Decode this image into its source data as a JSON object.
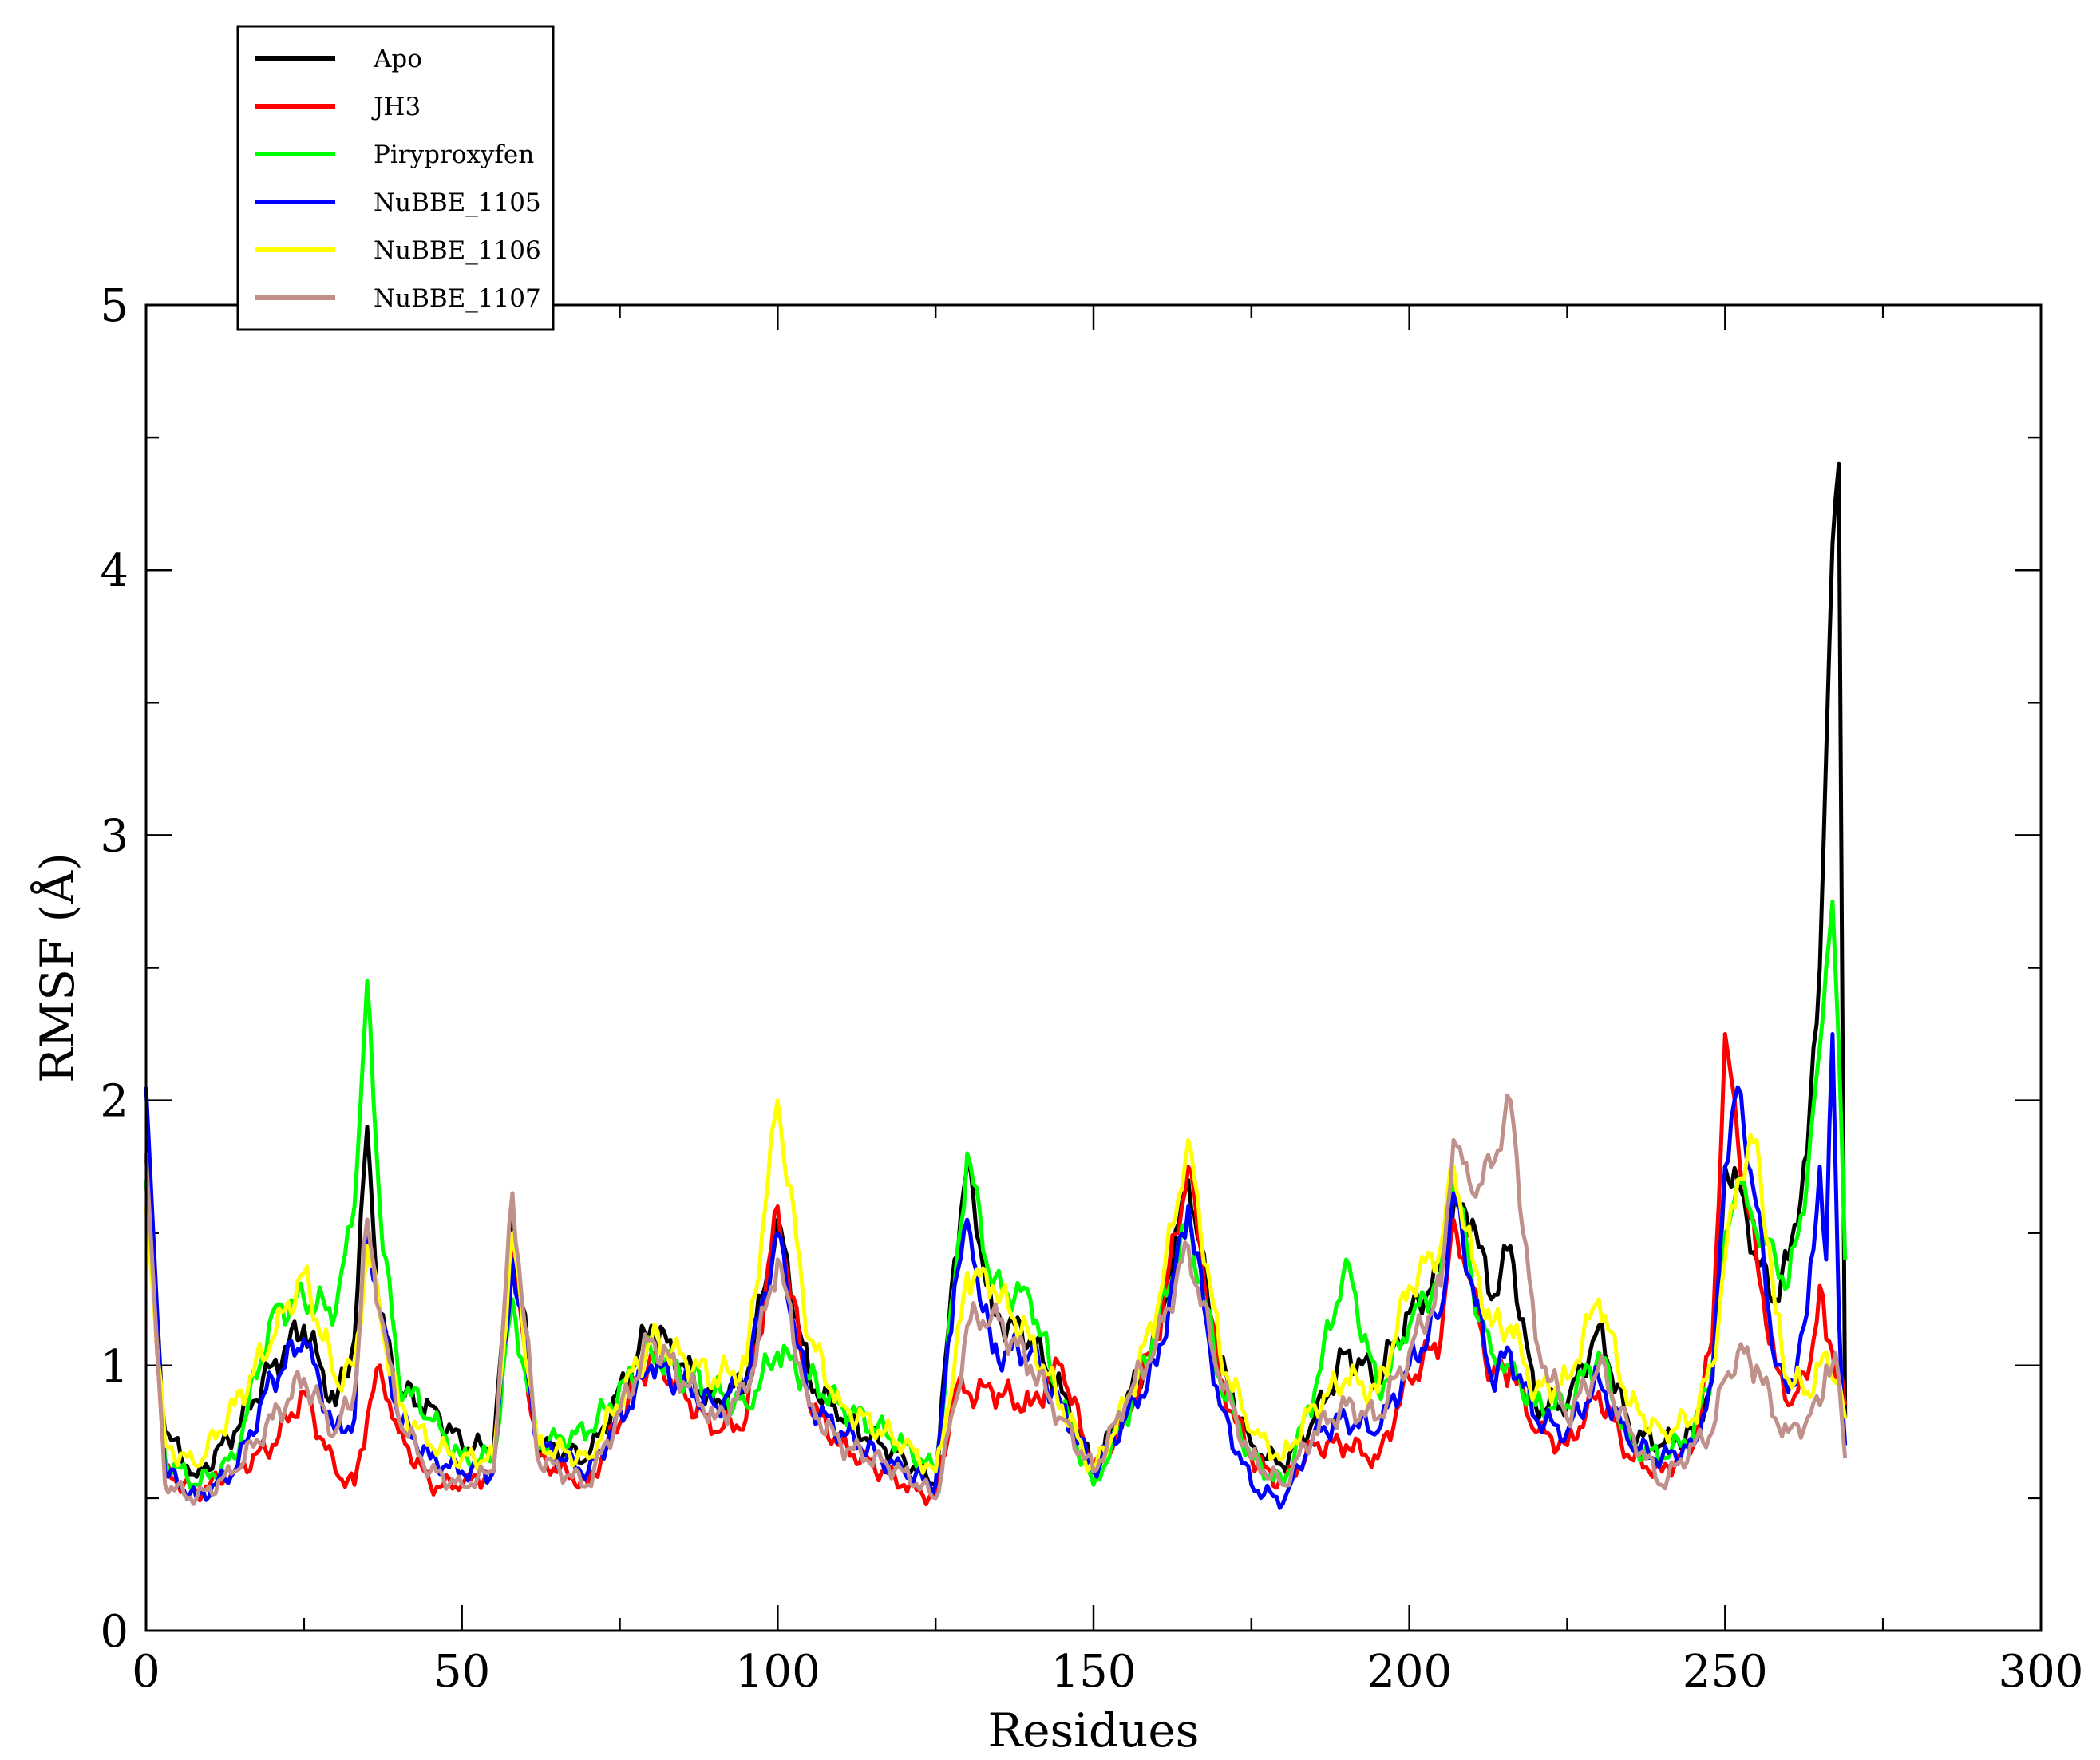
{
  "chart_data": {
    "type": "line",
    "title": "",
    "xlabel": "Residues",
    "ylabel": "RMSF (Å)",
    "xlim": [
      0,
      300
    ],
    "ylim": [
      0,
      5
    ],
    "x_ticks": [
      0,
      50,
      100,
      150,
      200,
      250,
      300
    ],
    "y_ticks": [
      0,
      1,
      2,
      3,
      4,
      5
    ],
    "legend_position": "top-left",
    "series": [
      {
        "name": "Apo",
        "color": "#000000",
        "x": [
          0,
          3,
          8,
          14,
          20,
          25,
          30,
          33,
          35,
          37,
          40,
          45,
          50,
          55,
          58,
          62,
          70,
          80,
          90,
          95,
          100,
          105,
          110,
          120,
          125,
          128,
          130,
          134,
          140,
          145,
          150,
          155,
          160,
          165,
          170,
          175,
          180,
          185,
          190,
          195,
          200,
          205,
          207,
          210,
          213,
          216,
          220,
          225,
          230,
          235,
          240,
          245,
          248,
          250,
          252,
          255,
          258,
          260,
          263,
          265,
          266,
          267,
          268,
          269
        ],
        "values": [
          1.8,
          0.75,
          0.58,
          0.75,
          1.0,
          1.15,
          0.85,
          1.1,
          1.9,
          1.2,
          0.9,
          0.85,
          0.7,
          0.68,
          1.55,
          0.7,
          0.65,
          1.15,
          0.85,
          0.95,
          1.55,
          0.95,
          0.8,
          0.65,
          0.55,
          1.4,
          1.75,
          1.2,
          1.1,
          0.9,
          0.6,
          0.85,
          1.1,
          1.7,
          1.0,
          0.7,
          0.62,
          0.8,
          1.05,
          0.95,
          1.2,
          1.35,
          1.6,
          1.55,
          1.25,
          1.45,
          0.85,
          0.85,
          1.15,
          0.75,
          0.7,
          0.75,
          0.95,
          1.75,
          1.7,
          1.4,
          1.25,
          1.4,
          1.8,
          2.5,
          3.3,
          4.1,
          4.4,
          0.8
        ]
      },
      {
        "name": "JH3",
        "color": "#ff0000",
        "x": [
          0,
          3,
          8,
          14,
          20,
          25,
          30,
          33,
          35,
          37,
          40,
          45,
          50,
          55,
          58,
          62,
          70,
          80,
          90,
          95,
          100,
          105,
          110,
          120,
          125,
          128,
          130,
          134,
          140,
          145,
          150,
          155,
          160,
          165,
          170,
          175,
          180,
          185,
          190,
          195,
          200,
          205,
          207,
          210,
          213,
          216,
          220,
          225,
          230,
          235,
          240,
          245,
          248,
          250,
          252,
          255,
          258,
          260,
          263,
          265,
          266,
          267,
          268,
          269
        ],
        "values": [
          1.7,
          0.6,
          0.52,
          0.6,
          0.7,
          0.9,
          0.6,
          0.55,
          0.8,
          1.0,
          0.75,
          0.55,
          0.55,
          0.6,
          1.45,
          0.65,
          0.55,
          1.05,
          0.75,
          0.8,
          1.6,
          0.85,
          0.7,
          0.55,
          0.5,
          0.9,
          0.9,
          0.9,
          0.85,
          1.0,
          0.6,
          0.8,
          1.1,
          1.75,
          0.95,
          0.65,
          0.55,
          0.7,
          0.7,
          0.65,
          0.95,
          1.1,
          1.55,
          1.3,
          0.95,
          1.0,
          0.75,
          0.7,
          0.9,
          0.65,
          0.6,
          0.7,
          1.1,
          2.25,
          1.85,
          1.4,
          1.0,
          0.85,
          0.95,
          1.3,
          1.1,
          1.05,
          1.0,
          0.85
        ]
      },
      {
        "name": "Piryproxyfen",
        "color": "#00ff00",
        "x": [
          0,
          3,
          8,
          14,
          20,
          25,
          30,
          33,
          35,
          37,
          40,
          45,
          50,
          55,
          58,
          62,
          70,
          80,
          90,
          95,
          100,
          105,
          110,
          120,
          125,
          128,
          130,
          134,
          140,
          145,
          150,
          155,
          160,
          165,
          170,
          175,
          180,
          185,
          190,
          195,
          200,
          205,
          207,
          210,
          213,
          216,
          220,
          225,
          230,
          235,
          240,
          245,
          248,
          250,
          252,
          255,
          258,
          260,
          263,
          265,
          266,
          267,
          268,
          269
        ],
        "values": [
          1.7,
          0.65,
          0.55,
          0.65,
          1.2,
          1.25,
          1.2,
          1.6,
          2.45,
          1.6,
          0.95,
          0.8,
          0.65,
          0.65,
          1.25,
          0.7,
          0.75,
          1.05,
          0.9,
          0.85,
          1.05,
          0.95,
          0.85,
          0.7,
          0.6,
          1.3,
          1.8,
          1.3,
          1.25,
          0.85,
          0.55,
          0.8,
          1.15,
          1.55,
          0.95,
          0.65,
          0.55,
          0.9,
          1.4,
          0.9,
          1.15,
          1.35,
          1.75,
          1.3,
          1.05,
          1.0,
          0.85,
          0.85,
          1.05,
          0.7,
          0.65,
          0.75,
          1.0,
          1.5,
          1.7,
          1.5,
          1.4,
          1.3,
          1.7,
          2.2,
          2.5,
          2.75,
          2.2,
          1.4
        ]
      },
      {
        "name": "NuBBE_1105",
        "color": "#0000ff",
        "x": [
          0,
          3,
          8,
          14,
          20,
          25,
          30,
          33,
          35,
          37,
          40,
          45,
          50,
          55,
          58,
          62,
          70,
          80,
          90,
          95,
          100,
          105,
          110,
          120,
          125,
          128,
          130,
          134,
          140,
          145,
          150,
          155,
          160,
          165,
          170,
          175,
          180,
          185,
          190,
          195,
          200,
          205,
          207,
          210,
          213,
          216,
          220,
          225,
          230,
          235,
          240,
          245,
          248,
          250,
          252,
          255,
          258,
          260,
          263,
          265,
          266,
          267,
          268,
          269
        ],
        "values": [
          2.05,
          0.6,
          0.5,
          0.6,
          0.95,
          1.1,
          0.75,
          0.8,
          1.55,
          1.2,
          0.8,
          0.65,
          0.6,
          0.6,
          1.4,
          0.7,
          0.6,
          1.0,
          0.85,
          0.95,
          1.5,
          0.85,
          0.75,
          0.6,
          0.55,
          1.3,
          1.55,
          1.05,
          1.05,
          0.85,
          0.6,
          0.8,
          1.0,
          1.6,
          0.85,
          0.55,
          0.48,
          0.75,
          0.8,
          0.75,
          1.0,
          1.2,
          1.65,
          1.3,
          0.95,
          1.05,
          0.8,
          0.75,
          0.95,
          0.7,
          0.65,
          0.7,
          0.95,
          1.75,
          2.05,
          1.6,
          1.0,
          0.9,
          1.2,
          1.75,
          1.4,
          2.25,
          1.2,
          0.7
        ]
      },
      {
        "name": "NuBBE_1106",
        "color": "#ffff00",
        "x": [
          0,
          3,
          8,
          14,
          20,
          25,
          30,
          33,
          35,
          37,
          40,
          45,
          50,
          55,
          58,
          62,
          70,
          80,
          90,
          95,
          100,
          105,
          110,
          120,
          125,
          128,
          130,
          134,
          140,
          145,
          150,
          155,
          160,
          165,
          170,
          175,
          180,
          185,
          190,
          195,
          200,
          205,
          207,
          210,
          213,
          216,
          220,
          225,
          230,
          235,
          240,
          245,
          248,
          250,
          252,
          255,
          258,
          260,
          263,
          265,
          266,
          267,
          268,
          269
        ],
        "values": [
          1.6,
          0.7,
          0.62,
          0.85,
          1.1,
          1.35,
          0.95,
          1.0,
          1.45,
          1.2,
          0.85,
          0.7,
          0.65,
          0.65,
          1.5,
          0.7,
          0.65,
          1.1,
          0.95,
          1.0,
          2.0,
          1.1,
          0.85,
          0.7,
          0.6,
          1.0,
          1.35,
          1.3,
          1.1,
          0.85,
          0.6,
          0.85,
          1.2,
          1.85,
          1.05,
          0.75,
          0.65,
          0.85,
          0.95,
          0.9,
          1.3,
          1.45,
          1.75,
          1.4,
          1.15,
          1.15,
          0.9,
          0.95,
          1.25,
          0.85,
          0.75,
          0.8,
          1.0,
          1.4,
          1.7,
          1.85,
          1.2,
          0.95,
          0.9,
          1.0,
          1.05,
          0.95,
          0.95,
          0.8
        ]
      },
      {
        "name": "NuBBE_1107",
        "color": "#c0908a",
        "x": [
          0,
          3,
          8,
          14,
          20,
          25,
          30,
          33,
          35,
          37,
          40,
          45,
          50,
          55,
          58,
          62,
          70,
          80,
          90,
          95,
          100,
          105,
          110,
          120,
          125,
          128,
          130,
          134,
          140,
          145,
          150,
          155,
          160,
          165,
          170,
          175,
          180,
          185,
          190,
          195,
          200,
          205,
          207,
          210,
          213,
          216,
          220,
          225,
          230,
          235,
          240,
          245,
          248,
          250,
          252,
          255,
          258,
          260,
          263,
          265,
          266,
          267,
          268,
          269
        ],
        "values": [
          1.8,
          0.55,
          0.5,
          0.6,
          0.8,
          0.95,
          0.75,
          0.9,
          1.55,
          1.2,
          0.8,
          0.6,
          0.55,
          0.6,
          1.65,
          0.65,
          0.55,
          1.1,
          0.8,
          0.9,
          1.4,
          0.85,
          0.7,
          0.6,
          0.5,
          0.85,
          1.15,
          1.2,
          1.0,
          0.8,
          0.6,
          0.85,
          1.1,
          1.45,
          0.95,
          0.65,
          0.55,
          0.75,
          0.85,
          0.8,
          1.05,
          1.3,
          1.85,
          1.65,
          1.75,
          2.0,
          1.1,
          0.8,
          1.0,
          0.75,
          0.55,
          0.7,
          0.75,
          0.95,
          1.05,
          1.0,
          0.8,
          0.75,
          0.8,
          0.85,
          1.0,
          1.0,
          0.95,
          0.65
        ]
      }
    ]
  }
}
